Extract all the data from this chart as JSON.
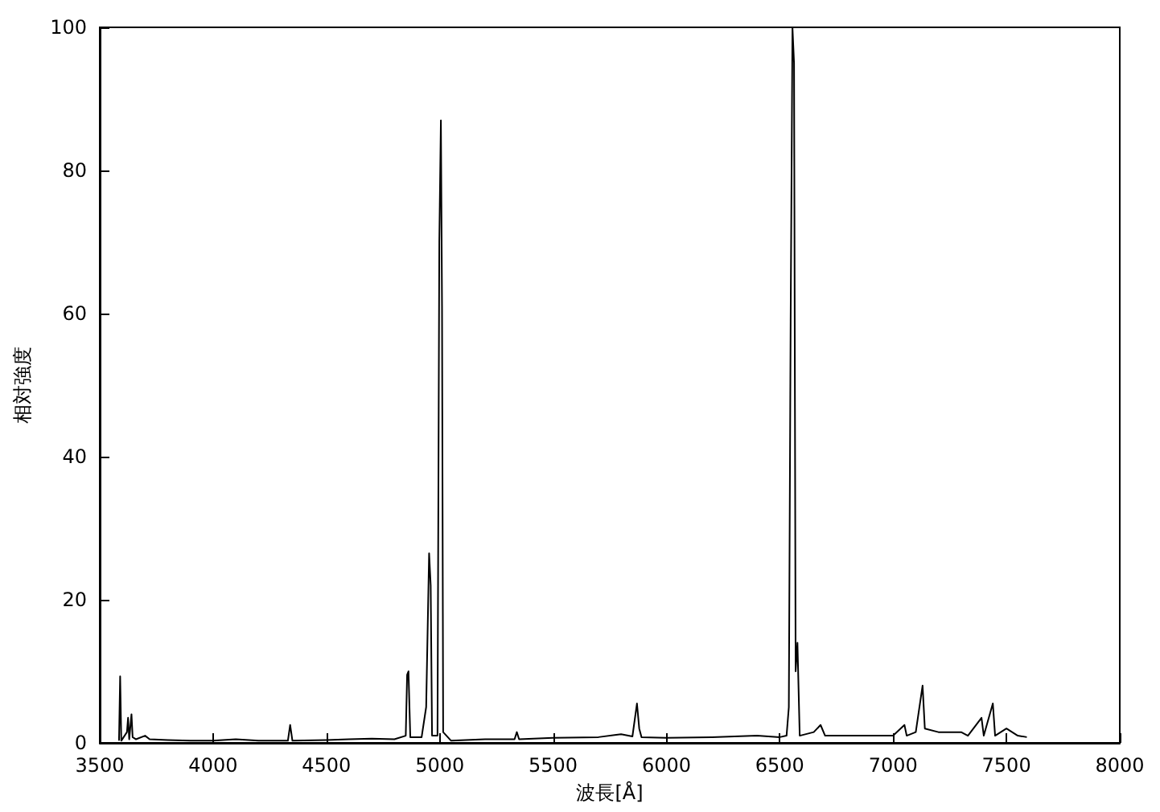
{
  "chart_data": {
    "type": "line",
    "xlabel": "波長[Å]",
    "ylabel": "相対強度",
    "xlim": [
      3500,
      8000
    ],
    "xticks": [
      3500,
      4000,
      4500,
      5000,
      5500,
      6000,
      6500,
      7000,
      7500,
      8000
    ],
    "ylim": [
      0,
      100
    ],
    "yticks": [
      0,
      20,
      40,
      60,
      80,
      100
    ],
    "grid": false,
    "marker": "none",
    "line_style": "solid",
    "series": [
      {
        "color": "#000000",
        "x": [
          3585,
          3590,
          3595,
          3620,
          3625,
          3630,
          3640,
          3645,
          3660,
          3700,
          3720,
          3800,
          3900,
          4000,
          4100,
          4200,
          4330,
          4340,
          4350,
          4500,
          4600,
          4700,
          4800,
          4850,
          4856,
          4862,
          4870,
          4920,
          4940,
          4953,
          4960,
          4966,
          4990,
          4998,
          5005,
          5010,
          5015,
          5050,
          5200,
          5330,
          5340,
          5350,
          5500,
          5700,
          5800,
          5850,
          5870,
          5880,
          5890,
          6000,
          6200,
          6400,
          6500,
          6530,
          6540,
          6548,
          6556,
          6563,
          6570,
          6578,
          6588,
          6650,
          6680,
          6700,
          6800,
          6900,
          7000,
          7050,
          7060,
          7100,
          7130,
          7140,
          7200,
          7300,
          7330,
          7390,
          7400,
          7440,
          7450,
          7500,
          7550,
          7590
        ],
        "values": [
          0.3,
          9.3,
          0.3,
          1.5,
          3.5,
          0.5,
          4,
          0.8,
          0.5,
          1,
          0.5,
          0.4,
          0.3,
          0.3,
          0.5,
          0.3,
          0.3,
          2.5,
          0.3,
          0.4,
          0.5,
          0.6,
          0.5,
          1,
          9.5,
          10,
          0.8,
          0.8,
          5,
          26.5,
          22,
          1,
          1,
          70,
          87,
          61,
          1.5,
          0.3,
          0.5,
          0.5,
          1.5,
          0.5,
          0.7,
          0.8,
          1.2,
          0.9,
          5.5,
          2,
          0.8,
          0.7,
          0.8,
          1,
          0.8,
          1,
          5,
          59,
          100,
          95,
          10,
          14,
          1,
          1.5,
          2.5,
          1,
          1,
          1,
          1,
          2.5,
          1,
          1.5,
          8,
          2,
          1.5,
          1.5,
          1,
          3.5,
          1,
          5.5,
          1,
          2,
          1,
          0.8
        ]
      }
    ]
  }
}
